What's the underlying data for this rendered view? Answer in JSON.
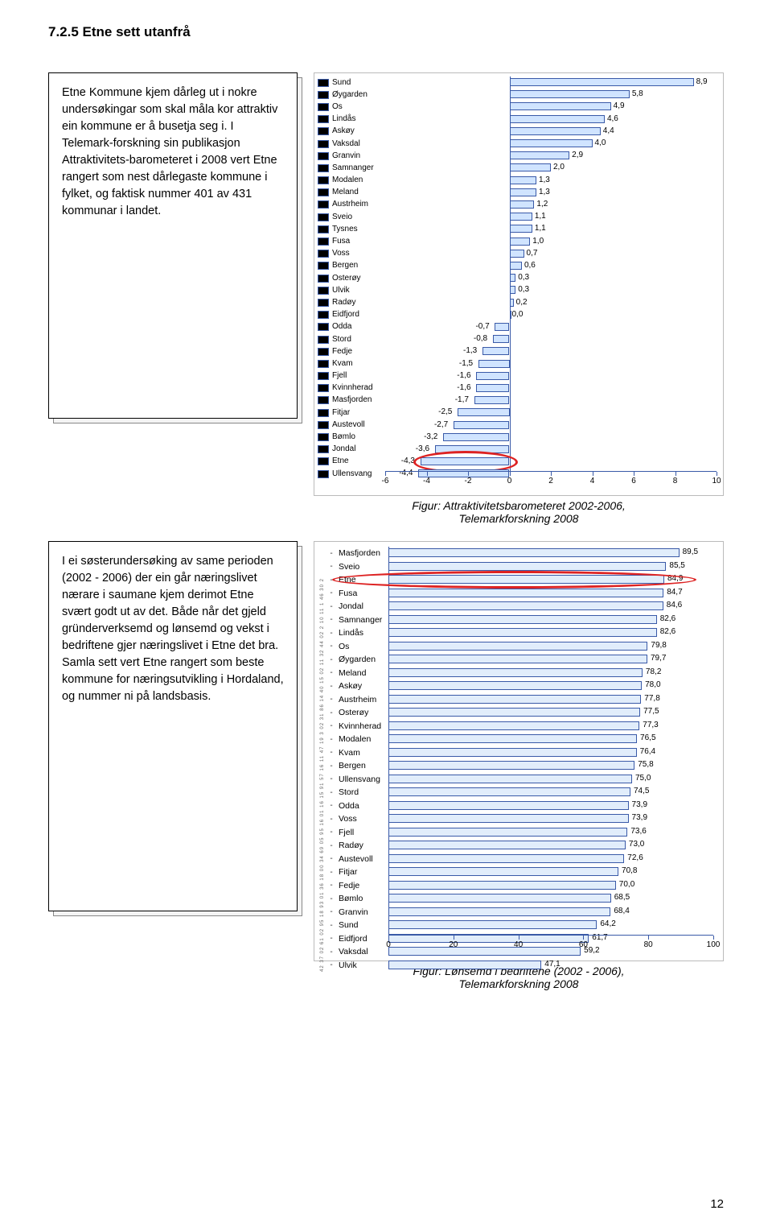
{
  "heading": "7.2.5 Etne sett utanfrå",
  "textbox1": "Etne Kommune kjem dårleg ut i nokre undersøkingar som skal måla kor attraktiv ein kommune er å busetja seg i. I Telemark-forskning sin publikasjon Attraktivitets-barometeret i 2008 vert Etne rangert som nest dårlegaste kommune i fylket, og faktisk nummer 401 av 431 kommunar i landet.",
  "caption1_a": "Figur: Attraktivitetsbarometeret 2002-2006,",
  "caption1_b": "Telemarkforskning 2008",
  "textbox2": "I ei søsterundersøking av same perioden (2002 - 2006) der ein går næringslivet nærare i saumane kjem derimot Etne svært godt ut av det. Både når det gjeld gründerverksemd og lønsemd og vekst i bedriftene gjer næringslivet i Etne det bra.\nSamla sett vert Etne rangert som beste kommune for næringsutvikling i Hordaland, og nummer ni på landsbasis.",
  "caption2_a": "Figur: Lønsemd i bedriftene (2002 - 2006),",
  "caption2_b": "Telemarkforskning 2008",
  "page_num": "12",
  "chart1": {
    "type": "bar",
    "xlim": [
      -6,
      10
    ],
    "ticks": [
      -6,
      -4,
      -2,
      0,
      2,
      4,
      6,
      8,
      10
    ],
    "bar_fill": "#d0e4ff",
    "bar_border": "#3a5aa8",
    "highlight_label": "Etne",
    "circle_color": "#d22",
    "items": [
      {
        "label": "Sund",
        "value": 8.9
      },
      {
        "label": "Øygarden",
        "value": 5.8
      },
      {
        "label": "Os",
        "value": 4.9
      },
      {
        "label": "Lindås",
        "value": 4.6
      },
      {
        "label": "Askøy",
        "value": 4.4
      },
      {
        "label": "Vaksdal",
        "value": 4.0
      },
      {
        "label": "Granvin",
        "value": 2.9
      },
      {
        "label": "Samnanger",
        "value": 2.0
      },
      {
        "label": "Modalen",
        "value": 1.3
      },
      {
        "label": "Meland",
        "value": 1.3
      },
      {
        "label": "Austrheim",
        "value": 1.2
      },
      {
        "label": "Sveio",
        "value": 1.1
      },
      {
        "label": "Tysnes",
        "value": 1.1
      },
      {
        "label": "Fusa",
        "value": 1.0
      },
      {
        "label": "Voss",
        "value": 0.7
      },
      {
        "label": "Bergen",
        "value": 0.6
      },
      {
        "label": "Osterøy",
        "value": 0.3
      },
      {
        "label": "Ulvik",
        "value": 0.3
      },
      {
        "label": "Radøy",
        "value": 0.2
      },
      {
        "label": "Eidfjord",
        "value": 0.0
      },
      {
        "label": "Odda",
        "value": -0.7
      },
      {
        "label": "Stord",
        "value": -0.8
      },
      {
        "label": "Fedje",
        "value": -1.3
      },
      {
        "label": "Kvam",
        "value": -1.5
      },
      {
        "label": "Fjell",
        "value": -1.6
      },
      {
        "label": "Kvinnherad",
        "value": -1.6
      },
      {
        "label": "Masfjorden",
        "value": -1.7
      },
      {
        "label": "Fitjar",
        "value": -2.5
      },
      {
        "label": "Austevoll",
        "value": -2.7
      },
      {
        "label": "Bømlo",
        "value": -3.2
      },
      {
        "label": "Jondal",
        "value": -3.6
      },
      {
        "label": "Etne",
        "value": -4.3
      },
      {
        "label": "Ullensvang",
        "value": -4.4
      }
    ]
  },
  "chart2": {
    "type": "bar",
    "xlim": [
      0,
      100
    ],
    "ticks": [
      0,
      20,
      40,
      60,
      80,
      100
    ],
    "bar_fill": "#e1edfb",
    "bar_border": "#3a5aa8",
    "highlight_label": "Etne",
    "circle_color": "#d22",
    "rank_text": "42 37 02 61 02 95 18 93 01 36 18 00 34 69 05  95 16 01 16 15 91 57 16 11 47  19  3  02 31 86  14  40 15 02 11  32  44  02 2  10  11 1  46 30 2",
    "items": [
      {
        "label": "Masfjorden",
        "value": 89.5
      },
      {
        "label": "Sveio",
        "value": 85.5
      },
      {
        "label": "Etne",
        "value": 84.9
      },
      {
        "label": "Fusa",
        "value": 84.7
      },
      {
        "label": "Jondal",
        "value": 84.6
      },
      {
        "label": "Samnanger",
        "value": 82.6
      },
      {
        "label": "Lindås",
        "value": 82.6
      },
      {
        "label": "Os",
        "value": 79.8
      },
      {
        "label": "Øygarden",
        "value": 79.7
      },
      {
        "label": "Meland",
        "value": 78.2
      },
      {
        "label": "Askøy",
        "value": 78.0
      },
      {
        "label": "Austrheim",
        "value": 77.8
      },
      {
        "label": "Osterøy",
        "value": 77.5
      },
      {
        "label": "Kvinnherad",
        "value": 77.3
      },
      {
        "label": "Modalen",
        "value": 76.5
      },
      {
        "label": "Kvam",
        "value": 76.4
      },
      {
        "label": "Bergen",
        "value": 75.8
      },
      {
        "label": "Ullensvang",
        "value": 75.0
      },
      {
        "label": "Stord",
        "value": 74.5
      },
      {
        "label": "Odda",
        "value": 73.9
      },
      {
        "label": "Voss",
        "value": 73.9
      },
      {
        "label": "Fjell",
        "value": 73.6
      },
      {
        "label": "Radøy",
        "value": 73.0
      },
      {
        "label": "Austevoll",
        "value": 72.6
      },
      {
        "label": "Fitjar",
        "value": 70.8
      },
      {
        "label": "Fedje",
        "value": 70.0
      },
      {
        "label": "Bømlo",
        "value": 68.5
      },
      {
        "label": "Granvin",
        "value": 68.4
      },
      {
        "label": "Sund",
        "value": 64.2
      },
      {
        "label": "Eidfjord",
        "value": 61.7
      },
      {
        "label": "Vaksdal",
        "value": 59.2
      },
      {
        "label": "Ulvik",
        "value": 47.1
      }
    ]
  }
}
